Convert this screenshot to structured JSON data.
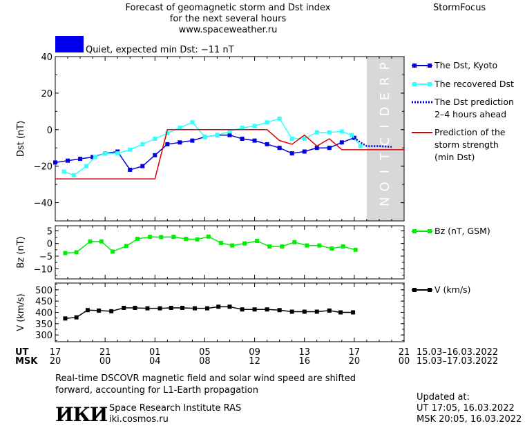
{
  "header": {
    "title_lines": [
      "Forecast of geomagnetic storm and Dst index",
      "for the next several hours",
      "www.spaceweather.ru"
    ],
    "brand": "StormFocus",
    "status_color": "#0000ee",
    "status_text": "Quiet, expected min Dst: −11 nT"
  },
  "footer": {
    "ut_label": "UT",
    "msk_label": "MSK",
    "ut_range": "15.03–16.03.2022",
    "msk_range": "15.03–17.03.2022",
    "note_lines": [
      "Real-time DSCOVR magnetic field and solar wind speed are shifted",
      "forward, accounting for L1-Earth propagation"
    ],
    "logo": "ИКИ",
    "institute": "Space Research Institute RAS",
    "site": "iki.cosmos.ru",
    "updated_label": "Updated at:",
    "updated_ut": "UT   17:05, 16.03.2022",
    "updated_msk": "MSK 20:05, 16.03.2022"
  },
  "chart_data": [
    {
      "type": "line",
      "ylabel": "Dst (nT)",
      "ylim": [
        -50,
        40
      ],
      "yticks": [
        -40,
        -20,
        0,
        20,
        40
      ],
      "xlim": [
        17,
        45
      ],
      "prediction_band": {
        "x": [
          42,
          45
        ],
        "label": "PREDICTION",
        "color": "#d8d8d8"
      },
      "series": [
        {
          "name": "The Dst, Kyoto",
          "color": "#0000dd",
          "marker": "square",
          "points": [
            [
              17,
              -18
            ],
            [
              18,
              -17
            ],
            [
              19,
              -16
            ],
            [
              20,
              -15
            ],
            [
              21,
              -13
            ],
            [
              22,
              -12
            ],
            [
              23,
              -22
            ],
            [
              24,
              -20
            ],
            [
              25,
              -14
            ],
            [
              26,
              -8
            ],
            [
              27,
              -7
            ],
            [
              28,
              -6
            ],
            [
              29,
              -4
            ],
            [
              30,
              -3
            ],
            [
              31,
              -3
            ],
            [
              32,
              -5
            ],
            [
              33,
              -6
            ],
            [
              34,
              -8
            ],
            [
              35,
              -10
            ],
            [
              36,
              -13
            ],
            [
              37,
              -12
            ],
            [
              38,
              -10
            ],
            [
              39,
              -10
            ],
            [
              40,
              -7
            ],
            [
              41,
              -4.5
            ]
          ]
        },
        {
          "name": "The recovered Dst",
          "color": "#33ffff",
          "marker": "square",
          "points": [
            [
              17.7,
              -23
            ],
            [
              18.5,
              -25
            ],
            [
              19.5,
              -20
            ],
            [
              20.2,
              -15
            ],
            [
              21,
              -13
            ],
            [
              22,
              -13
            ],
            [
              23,
              -11
            ],
            [
              24,
              -8
            ],
            [
              25,
              -5
            ],
            [
              26,
              -2
            ],
            [
              27,
              1
            ],
            [
              28,
              4
            ],
            [
              29,
              -4
            ],
            [
              30,
              -3
            ],
            [
              31,
              -1
            ],
            [
              32,
              1
            ],
            [
              33,
              2
            ],
            [
              34,
              4
            ],
            [
              35,
              6
            ],
            [
              36,
              -5
            ],
            [
              37,
              -5
            ],
            [
              38,
              -1.5
            ],
            [
              39,
              -1.5
            ],
            [
              40,
              -1
            ],
            [
              40.8,
              -3
            ],
            [
              41.5,
              -9
            ]
          ]
        },
        {
          "name": "The Dst prediction\n2–4 hours ahead",
          "color": "#0000cc",
          "dashed": true,
          "points": [
            [
              41,
              -4.5
            ],
            [
              41.5,
              -7
            ],
            [
              42,
              -9
            ],
            [
              43,
              -9
            ],
            [
              44,
              -9.5
            ]
          ]
        },
        {
          "name": "Prediction of the\nstorm strength\n(min Dst)",
          "color": "#dd0000",
          "points": [
            [
              17,
              -27
            ],
            [
              25,
              -27
            ],
            [
              26,
              0
            ],
            [
              34,
              0
            ],
            [
              35,
              -6
            ],
            [
              36,
              -8
            ],
            [
              37,
              -3
            ],
            [
              38,
              -9
            ],
            [
              39,
              -5
            ],
            [
              40,
              -11
            ],
            [
              45,
              -11
            ]
          ]
        }
      ]
    },
    {
      "type": "line",
      "ylabel": "Bz (nT)",
      "ylim": [
        -14,
        7
      ],
      "yticks": [
        -10,
        -5,
        0,
        5
      ],
      "xlim": [
        17,
        45
      ],
      "series": [
        {
          "name": "Bz (nT, GSM)",
          "color": "#00ee00",
          "marker": "square",
          "points": [
            [
              17.8,
              -3.8
            ],
            [
              18.7,
              -3.5
            ],
            [
              19.8,
              0.8
            ],
            [
              20.7,
              0.8
            ],
            [
              21.6,
              -3.2
            ],
            [
              22.7,
              -1
            ],
            [
              23.6,
              1.8
            ],
            [
              24.6,
              2.6
            ],
            [
              25.5,
              2.5
            ],
            [
              26.5,
              2.6
            ],
            [
              27.5,
              1.8
            ],
            [
              28.4,
              1.6
            ],
            [
              29.3,
              2.7
            ],
            [
              30.3,
              0.2
            ],
            [
              31.2,
              -0.8
            ],
            [
              32.2,
              0
            ],
            [
              33.2,
              1
            ],
            [
              34.2,
              -1.2
            ],
            [
              35.2,
              -1.2
            ],
            [
              36.2,
              0.5
            ],
            [
              37.2,
              -0.8
            ],
            [
              38.2,
              -0.8
            ],
            [
              39.2,
              -2
            ],
            [
              40.1,
              -1.2
            ],
            [
              41.1,
              -2.5
            ]
          ]
        }
      ]
    },
    {
      "type": "line",
      "ylabel": "V (km/s)",
      "ylim": [
        270,
        530
      ],
      "yticks": [
        300,
        350,
        400,
        450,
        500
      ],
      "xlim": [
        17,
        45
      ],
      "series": [
        {
          "name": "V (km/s)",
          "color": "#000000",
          "marker": "square",
          "points": [
            [
              17.8,
              373
            ],
            [
              18.7,
              378
            ],
            [
              19.6,
              410
            ],
            [
              20.5,
              408
            ],
            [
              21.5,
              405
            ],
            [
              22.5,
              420
            ],
            [
              23.4,
              420
            ],
            [
              24.4,
              418
            ],
            [
              25.4,
              418
            ],
            [
              26.3,
              420
            ],
            [
              27.2,
              420
            ],
            [
              28.2,
              418
            ],
            [
              29.2,
              418
            ],
            [
              30.1,
              425
            ],
            [
              31,
              425
            ],
            [
              32,
              413
            ],
            [
              33,
              413
            ],
            [
              34,
              413
            ],
            [
              35,
              410
            ],
            [
              36,
              403
            ],
            [
              37,
              403
            ],
            [
              38,
              403
            ],
            [
              39,
              408
            ],
            [
              39.9,
              400
            ],
            [
              40.9,
              400
            ]
          ]
        }
      ]
    }
  ],
  "x_axis": {
    "ut_ticks": [
      [
        17,
        "17"
      ],
      [
        21,
        "21"
      ],
      [
        25,
        "01"
      ],
      [
        29,
        "05"
      ],
      [
        33,
        "09"
      ],
      [
        37,
        "13"
      ],
      [
        41,
        "17"
      ],
      [
        45,
        "21"
      ]
    ],
    "msk_ticks": [
      [
        17,
        "20"
      ],
      [
        21,
        "00"
      ],
      [
        25,
        "04"
      ],
      [
        29,
        "08"
      ],
      [
        33,
        "12"
      ],
      [
        37,
        "16"
      ],
      [
        41,
        "20"
      ],
      [
        45,
        "00"
      ]
    ]
  }
}
